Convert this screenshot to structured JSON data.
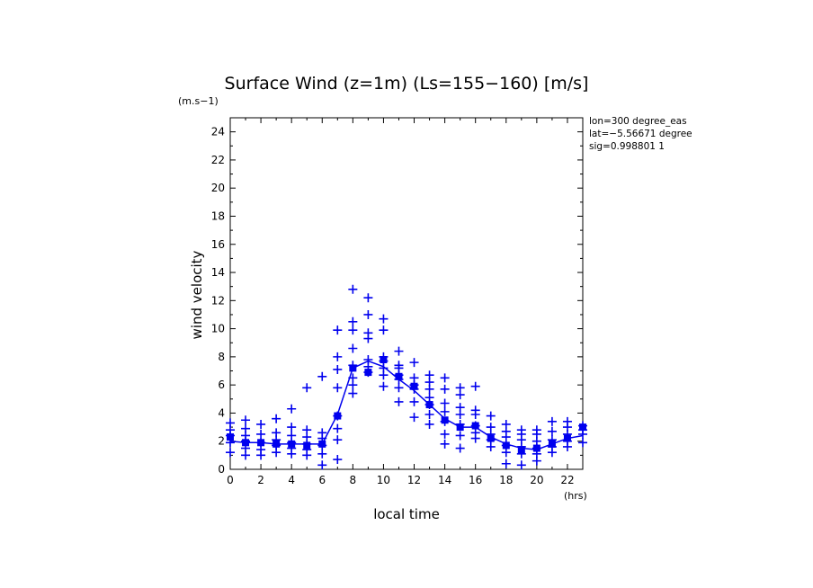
{
  "chart_data": {
    "type": "scatter",
    "title": "Surface Wind (z=1m) (Ls=155−160) [m/s]",
    "ylabel": "wind velocity",
    "yunit": "(m.s−1)",
    "xlabel": "local time",
    "xunit": "(hrs)",
    "annotations": [
      "lon=300 degree_eas",
      "lat=−5.56671 degree",
      "sig=0.998801 1"
    ],
    "xlim": [
      0,
      23
    ],
    "ylim": [
      0,
      25
    ],
    "xticks": [
      0,
      2,
      4,
      6,
      8,
      10,
      12,
      14,
      16,
      18,
      20,
      22
    ],
    "yticks": [
      0,
      2,
      4,
      6,
      8,
      10,
      12,
      14,
      16,
      18,
      20,
      22,
      24
    ],
    "color": "#0000ee",
    "grid": false,
    "series": [
      {
        "marker": "plus",
        "points": [
          [
            0,
            1.2
          ],
          [
            0,
            1.9
          ],
          [
            0,
            2.4
          ],
          [
            0,
            2.8
          ],
          [
            0,
            3.3
          ],
          [
            1,
            1.0
          ],
          [
            1,
            1.5
          ],
          [
            1,
            2.0
          ],
          [
            1,
            2.4
          ],
          [
            1,
            2.9
          ],
          [
            1,
            3.5
          ],
          [
            2,
            1.0
          ],
          [
            2,
            1.4
          ],
          [
            2,
            1.9
          ],
          [
            2,
            2.5
          ],
          [
            2,
            3.2
          ],
          [
            3,
            1.2
          ],
          [
            3,
            1.7
          ],
          [
            3,
            2.1
          ],
          [
            3,
            2.6
          ],
          [
            3,
            3.6
          ],
          [
            4,
            1.1
          ],
          [
            4,
            1.5
          ],
          [
            4,
            1.9
          ],
          [
            4,
            2.4
          ],
          [
            4,
            3.0
          ],
          [
            4,
            4.3
          ],
          [
            5,
            1.0
          ],
          [
            5,
            1.4
          ],
          [
            5,
            1.8
          ],
          [
            5,
            2.3
          ],
          [
            5,
            2.8
          ],
          [
            5,
            5.8
          ],
          [
            6,
            0.3
          ],
          [
            6,
            1.1
          ],
          [
            6,
            1.7
          ],
          [
            6,
            2.2
          ],
          [
            6,
            2.6
          ],
          [
            6,
            6.6
          ],
          [
            7,
            0.7
          ],
          [
            7,
            2.1
          ],
          [
            7,
            2.9
          ],
          [
            7,
            3.8
          ],
          [
            7,
            5.8
          ],
          [
            7,
            7.1
          ],
          [
            7,
            8.0
          ],
          [
            7,
            9.9
          ],
          [
            8,
            5.4
          ],
          [
            8,
            6.0
          ],
          [
            8,
            6.5
          ],
          [
            8,
            7.4
          ],
          [
            8,
            8.6
          ],
          [
            8,
            9.9
          ],
          [
            8,
            10.5
          ],
          [
            8,
            12.8
          ],
          [
            9,
            6.9
          ],
          [
            9,
            7.3
          ],
          [
            9,
            7.8
          ],
          [
            9,
            9.3
          ],
          [
            9,
            9.7
          ],
          [
            9,
            11.0
          ],
          [
            9,
            12.2
          ],
          [
            10,
            5.9
          ],
          [
            10,
            6.7
          ],
          [
            10,
            7.2
          ],
          [
            10,
            7.7
          ],
          [
            10,
            8.0
          ],
          [
            10,
            9.9
          ],
          [
            10,
            10.7
          ],
          [
            11,
            4.8
          ],
          [
            11,
            5.8
          ],
          [
            11,
            6.4
          ],
          [
            11,
            6.7
          ],
          [
            11,
            7.2
          ],
          [
            11,
            7.4
          ],
          [
            11,
            8.4
          ],
          [
            12,
            3.7
          ],
          [
            12,
            4.8
          ],
          [
            12,
            5.7
          ],
          [
            12,
            6.0
          ],
          [
            12,
            6.5
          ],
          [
            12,
            7.6
          ],
          [
            13,
            3.2
          ],
          [
            13,
            3.9
          ],
          [
            13,
            4.6
          ],
          [
            13,
            5.1
          ],
          [
            13,
            5.7
          ],
          [
            13,
            6.2
          ],
          [
            13,
            6.7
          ],
          [
            14,
            1.8
          ],
          [
            14,
            2.5
          ],
          [
            14,
            3.4
          ],
          [
            14,
            4.1
          ],
          [
            14,
            4.7
          ],
          [
            14,
            5.7
          ],
          [
            14,
            6.5
          ],
          [
            15,
            1.5
          ],
          [
            15,
            2.4
          ],
          [
            15,
            3.2
          ],
          [
            15,
            3.9
          ],
          [
            15,
            4.4
          ],
          [
            15,
            5.3
          ],
          [
            15,
            5.8
          ],
          [
            16,
            2.2
          ],
          [
            16,
            2.6
          ],
          [
            16,
            3.1
          ],
          [
            16,
            3.9
          ],
          [
            16,
            4.2
          ],
          [
            16,
            5.9
          ],
          [
            17,
            1.6
          ],
          [
            17,
            2.1
          ],
          [
            17,
            2.5
          ],
          [
            17,
            3.0
          ],
          [
            17,
            3.8
          ],
          [
            18,
            0.4
          ],
          [
            18,
            1.2
          ],
          [
            18,
            1.7
          ],
          [
            18,
            2.3
          ],
          [
            18,
            2.7
          ],
          [
            18,
            3.2
          ],
          [
            19,
            0.3
          ],
          [
            19,
            1.1
          ],
          [
            19,
            1.6
          ],
          [
            19,
            2.1
          ],
          [
            19,
            2.5
          ],
          [
            19,
            2.8
          ],
          [
            20,
            0.6
          ],
          [
            20,
            1.1
          ],
          [
            20,
            1.5
          ],
          [
            20,
            2.0
          ],
          [
            20,
            2.5
          ],
          [
            20,
            2.8
          ],
          [
            21,
            1.2
          ],
          [
            21,
            1.6
          ],
          [
            21,
            2.1
          ],
          [
            21,
            2.7
          ],
          [
            21,
            3.4
          ],
          [
            22,
            1.6
          ],
          [
            22,
            2.0
          ],
          [
            22,
            2.5
          ],
          [
            22,
            3.0
          ],
          [
            22,
            3.4
          ],
          [
            23,
            1.9
          ],
          [
            23,
            2.5
          ],
          [
            23,
            2.8
          ],
          [
            23,
            3.1
          ]
        ]
      },
      {
        "marker": "square",
        "points": [
          [
            0,
            2.3
          ],
          [
            1,
            1.9
          ],
          [
            2,
            1.9
          ],
          [
            3,
            1.8
          ],
          [
            4,
            1.8
          ],
          [
            5,
            1.7
          ],
          [
            6,
            1.8
          ],
          [
            7,
            3.8
          ],
          [
            8,
            7.2
          ],
          [
            9,
            6.9
          ],
          [
            10,
            7.8
          ],
          [
            11,
            6.6
          ],
          [
            12,
            5.9
          ],
          [
            13,
            4.6
          ],
          [
            14,
            3.5
          ],
          [
            15,
            3.0
          ],
          [
            16,
            3.1
          ],
          [
            17,
            2.2
          ],
          [
            18,
            1.7
          ],
          [
            19,
            1.4
          ],
          [
            20,
            1.5
          ],
          [
            21,
            1.8
          ],
          [
            22,
            2.2
          ],
          [
            23,
            3.0
          ]
        ]
      },
      {
        "marker": "line",
        "points": [
          [
            0,
            2.0
          ],
          [
            1,
            1.9
          ],
          [
            2,
            1.9
          ],
          [
            3,
            1.8
          ],
          [
            4,
            1.8
          ],
          [
            5,
            1.8
          ],
          [
            6,
            1.8
          ],
          [
            7,
            3.9
          ],
          [
            8,
            7.2
          ],
          [
            9,
            7.7
          ],
          [
            10,
            7.3
          ],
          [
            11,
            6.4
          ],
          [
            12,
            5.6
          ],
          [
            13,
            4.6
          ],
          [
            14,
            3.6
          ],
          [
            15,
            3.0
          ],
          [
            16,
            3.0
          ],
          [
            17,
            2.3
          ],
          [
            18,
            1.8
          ],
          [
            19,
            1.5
          ],
          [
            20,
            1.4
          ],
          [
            21,
            1.8
          ],
          [
            22,
            2.2
          ],
          [
            23,
            2.4
          ]
        ]
      }
    ]
  }
}
